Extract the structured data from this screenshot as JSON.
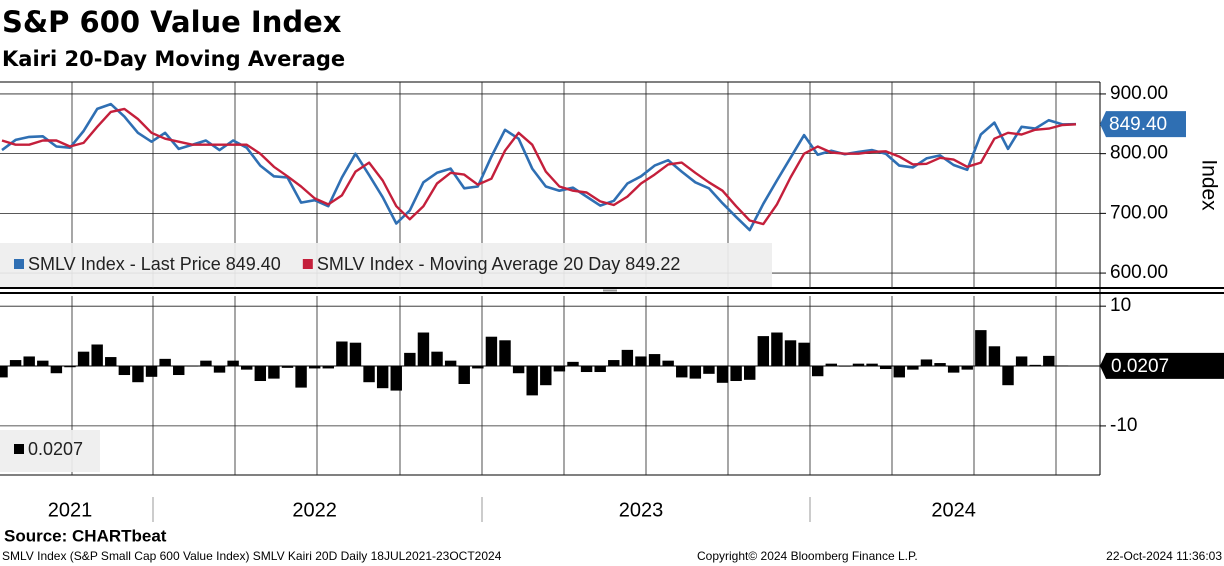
{
  "title": "S&P 600 Value Index",
  "subtitle": "Kairi 20-Day Moving Average",
  "source": "Source: CHARTbeat",
  "footer_left": "SMLV Index (S&P Small Cap 600 Value Index) SMLV Kairi 20D  Daily 18JUL2021-23OCT2024",
  "footer_center": "Copyright© 2024 Bloomberg Finance L.P.",
  "footer_right": "22-Oct-2024 11:36:03",
  "chart_data": [
    {
      "type": "line",
      "y_label": "Index",
      "ylim": [
        575,
        920
      ],
      "yticks": [
        {
          "value": 600,
          "label": "600.00"
        },
        {
          "value": 700,
          "label": "700.00"
        },
        {
          "value": 800,
          "label": "800.00"
        },
        {
          "value": 900,
          "label": "900.00"
        }
      ],
      "grid": true,
      "series": [
        {
          "name": "SMLV Index - Last Price 849.40",
          "color": "#2f6fb3",
          "last_label": "849.40",
          "values": [
            806,
            823,
            828,
            829,
            812,
            810,
            838,
            875,
            883,
            862,
            835,
            820,
            835,
            808,
            815,
            822,
            806,
            822,
            810,
            780,
            762,
            760,
            718,
            722,
            712,
            760,
            800,
            764,
            727,
            683,
            705,
            752,
            768,
            775,
            742,
            745,
            795,
            840,
            825,
            775,
            745,
            738,
            743,
            728,
            713,
            721,
            750,
            762,
            780,
            789,
            770,
            752,
            742,
            717,
            694,
            672,
            716,
            755,
            793,
            831,
            798,
            805,
            799,
            803,
            806,
            800,
            780,
            777,
            792,
            797,
            781,
            773,
            832,
            852,
            808,
            845,
            842,
            856,
            849,
            849.4
          ]
        },
        {
          "name": "SMLV Index - Moving Average 20 Day 849.22",
          "color": "#c41f3b",
          "values": [
            822,
            815,
            815,
            822,
            822,
            812,
            818,
            845,
            870,
            875,
            858,
            835,
            825,
            820,
            815,
            815,
            815,
            815,
            815,
            800,
            778,
            762,
            745,
            725,
            715,
            730,
            770,
            785,
            755,
            712,
            690,
            712,
            750,
            768,
            765,
            748,
            758,
            805,
            835,
            815,
            770,
            745,
            738,
            735,
            720,
            714,
            728,
            750,
            765,
            782,
            785,
            768,
            752,
            738,
            712,
            688,
            682,
            715,
            760,
            800,
            812,
            802,
            800,
            800,
            803,
            804,
            795,
            782,
            783,
            793,
            790,
            778,
            785,
            825,
            835,
            832,
            840,
            842,
            848,
            849.22
          ]
        }
      ]
    },
    {
      "type": "bar",
      "color": "#000000",
      "ylim": [
        -18.2,
        11.7
      ],
      "yticks": [
        -10,
        10
      ],
      "grid": true,
      "series_name": "0.0207",
      "categories": [
        null,
        null,
        null,
        null,
        null,
        "2021",
        null,
        null,
        null,
        null,
        null,
        null,
        null,
        null,
        null,
        null,
        null,
        null,
        null,
        null,
        null,
        null,
        null,
        "2022",
        null,
        null,
        null,
        null,
        null,
        null,
        null,
        null,
        null,
        null,
        null,
        null,
        null,
        null,
        null,
        null,
        null,
        null,
        null,
        null,
        null,
        null,
        null,
        "2023",
        null,
        null,
        null,
        null,
        null,
        null,
        null,
        null,
        null,
        null,
        null,
        null,
        null,
        null,
        null,
        null,
        null,
        null,
        null,
        null,
        null,
        null,
        "2024",
        null,
        null,
        null,
        null,
        null,
        null,
        null,
        null,
        null
      ],
      "values": [
        -1.9,
        1.0,
        1.6,
        0.9,
        -1.2,
        -0.2,
        2.4,
        3.6,
        1.5,
        -1.5,
        -2.7,
        -1.8,
        1.2,
        -1.5,
        0,
        0.9,
        -1.1,
        0.9,
        -0.6,
        -2.5,
        -2.1,
        -0.3,
        -3.6,
        -0.4,
        -0.4,
        4.1,
        3.9,
        -2.7,
        -3.7,
        -4.1,
        2.2,
        5.6,
        2.4,
        0.9,
        -3.0,
        -0.4,
        4.9,
        4.3,
        -1.2,
        -4.9,
        -3.2,
        -0.9,
        0.7,
        -1.0,
        -1.0,
        1.0,
        2.7,
        1.6,
        2.0,
        0.9,
        -1.9,
        -2.1,
        -1.3,
        -2.8,
        -2.5,
        -2.3,
        5.0,
        5.6,
        4.3,
        3.9,
        -1.7,
        0.4,
        -0.1,
        0.4,
        0.4,
        -0.5,
        -1.9,
        -0.6,
        1.1,
        0.5,
        -1.1,
        -0.6,
        6.0,
        3.3,
        -3.2,
        1.6,
        0.2,
        1.7,
        0.1,
        0.0207
      ]
    }
  ]
}
